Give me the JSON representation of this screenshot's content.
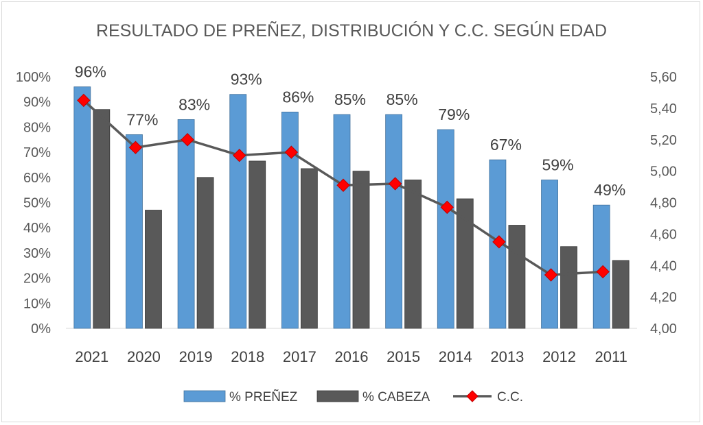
{
  "chart_data": {
    "type": "bar",
    "title": "RESULTADO DE PREÑEZ, DISTRIBUCIÓN Y C.C. SEGÚN EDAD",
    "xlabel": "",
    "ylabel": "",
    "categories": [
      "2021",
      "2020",
      "2019",
      "2018",
      "2017",
      "2016",
      "2015",
      "2014",
      "2013",
      "2012",
      "2011"
    ],
    "series": [
      {
        "name": "% PREÑEZ",
        "type": "bar",
        "axis": "left",
        "color": "#5b9bd5",
        "values": [
          96,
          77,
          83,
          93,
          86,
          85,
          85,
          79,
          67,
          59,
          49
        ],
        "data_labels": [
          "96%",
          "77%",
          "83%",
          "93%",
          "86%",
          "85%",
          "85%",
          "79%",
          "67%",
          "59%",
          "49%"
        ]
      },
      {
        "name": "% CABEZA",
        "type": "bar",
        "axis": "left",
        "color": "#595959",
        "values": [
          87,
          47,
          60,
          66.5,
          63.5,
          62.5,
          59,
          51.5,
          41,
          32.5,
          27
        ]
      },
      {
        "name": "C.C.",
        "type": "line",
        "axis": "right",
        "color": "#595959",
        "marker_color": "#ff0000",
        "values": [
          5.45,
          5.15,
          5.2,
          5.1,
          5.12,
          4.91,
          4.92,
          4.77,
          4.55,
          4.34,
          4.36
        ]
      }
    ],
    "y_left": {
      "min": 0,
      "max": 100,
      "step": 10,
      "tick_labels": [
        "0%",
        "10%",
        "20%",
        "30%",
        "40%",
        "50%",
        "60%",
        "70%",
        "80%",
        "90%",
        "100%"
      ]
    },
    "y_right": {
      "min": 4.0,
      "max": 5.6,
      "step": 0.2,
      "tick_labels": [
        "4,00",
        "4,20",
        "4,40",
        "4,60",
        "4,80",
        "5,00",
        "5,20",
        "5,40",
        "5,60"
      ]
    },
    "grid": false,
    "legend_position": "bottom"
  }
}
